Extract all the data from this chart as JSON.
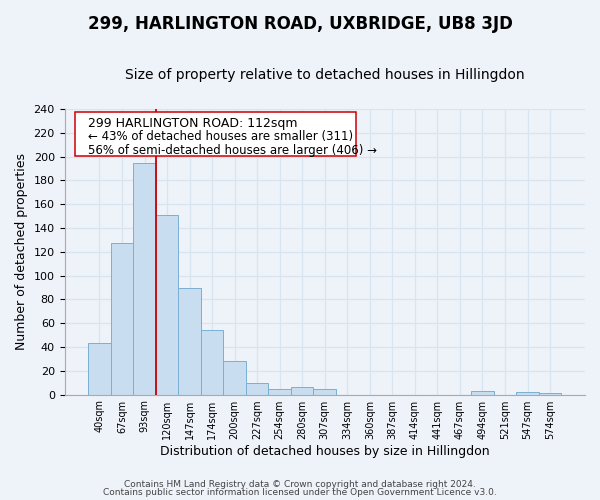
{
  "title": "299, HARLINGTON ROAD, UXBRIDGE, UB8 3JD",
  "subtitle": "Size of property relative to detached houses in Hillingdon",
  "bar_labels": [
    "40sqm",
    "67sqm",
    "93sqm",
    "120sqm",
    "147sqm",
    "174sqm",
    "200sqm",
    "227sqm",
    "254sqm",
    "280sqm",
    "307sqm",
    "334sqm",
    "360sqm",
    "387sqm",
    "414sqm",
    "441sqm",
    "467sqm",
    "494sqm",
    "521sqm",
    "547sqm",
    "574sqm"
  ],
  "bar_heights": [
    43,
    127,
    195,
    151,
    90,
    54,
    28,
    10,
    5,
    6,
    5,
    0,
    0,
    0,
    0,
    0,
    0,
    3,
    0,
    2,
    1
  ],
  "bar_color": "#c8ddf0",
  "bar_edge_color": "#7aafd4",
  "vline_color": "#cc0000",
  "vline_pos": 2.5,
  "ylabel": "Number of detached properties",
  "xlabel": "Distribution of detached houses by size in Hillingdon",
  "ylim": [
    0,
    240
  ],
  "yticks": [
    0,
    20,
    40,
    60,
    80,
    100,
    120,
    140,
    160,
    180,
    200,
    220,
    240
  ],
  "annotation_line1": "299 HARLINGTON ROAD: 112sqm",
  "annotation_line2": "← 43% of detached houses are smaller (311)",
  "annotation_line3": "56% of semi-detached houses are larger (406) →",
  "footer1": "Contains HM Land Registry data © Crown copyright and database right 2024.",
  "footer2": "Contains public sector information licensed under the Open Government Licence v3.0.",
  "background_color": "#eef2f9",
  "grid_color": "#d8e4f0",
  "title_fontsize": 12,
  "subtitle_fontsize": 10,
  "ylabel_fontsize": 9,
  "xlabel_fontsize": 9,
  "annotation_fontsize1": 9,
  "annotation_fontsize2": 8.5,
  "footer_fontsize": 6.5
}
